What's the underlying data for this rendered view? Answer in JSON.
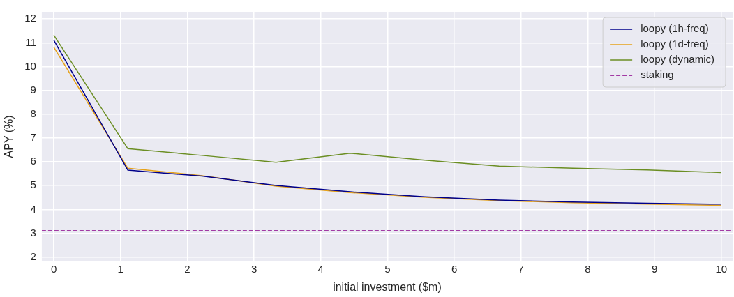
{
  "chart_data": {
    "type": "line",
    "xlabel": "initial investment ($m)",
    "ylabel": "APY (%)",
    "xlim": [
      -0.18,
      10.17
    ],
    "ylim": [
      1.82,
      12.3
    ],
    "xticks": [
      0,
      1,
      2,
      3,
      4,
      5,
      6,
      7,
      8,
      9,
      10
    ],
    "yticks": [
      2,
      3,
      4,
      5,
      6,
      7,
      8,
      9,
      10,
      11,
      12
    ],
    "grid": true,
    "legend": "top right",
    "marker": "none",
    "series": [
      {
        "name": "loopy (1h-freq)",
        "color": "#00008b",
        "x": [
          0,
          1.11,
          2.22,
          3.33,
          4.44,
          5.56,
          6.67,
          7.78,
          8.89,
          10
        ],
        "values": [
          11.11,
          5.65,
          5.4,
          5.01,
          4.74,
          4.53,
          4.39,
          4.31,
          4.26,
          4.22
        ]
      },
      {
        "name": "loopy (1d-freq)",
        "color": "#e6a21a",
        "x": [
          0,
          1.11,
          2.22,
          3.33,
          4.44,
          5.56,
          6.67,
          7.78,
          8.89,
          10
        ],
        "values": [
          10.82,
          5.73,
          5.42,
          4.98,
          4.71,
          4.51,
          4.37,
          4.28,
          4.22,
          4.17
        ]
      },
      {
        "name": "loopy (dynamic)",
        "color": "#6b8e23",
        "x": [
          0,
          1.11,
          2.22,
          3.33,
          4.44,
          5.56,
          6.67,
          7.78,
          8.89,
          10
        ],
        "values": [
          11.32,
          6.55,
          6.27,
          5.98,
          6.36,
          6.07,
          5.82,
          5.73,
          5.66,
          5.55
        ]
      },
      {
        "name": "staking",
        "color": "#8b008b",
        "line_style": "dashed",
        "x": [
          -0.18,
          10.17
        ],
        "values": [
          3.1,
          3.1
        ]
      }
    ]
  }
}
